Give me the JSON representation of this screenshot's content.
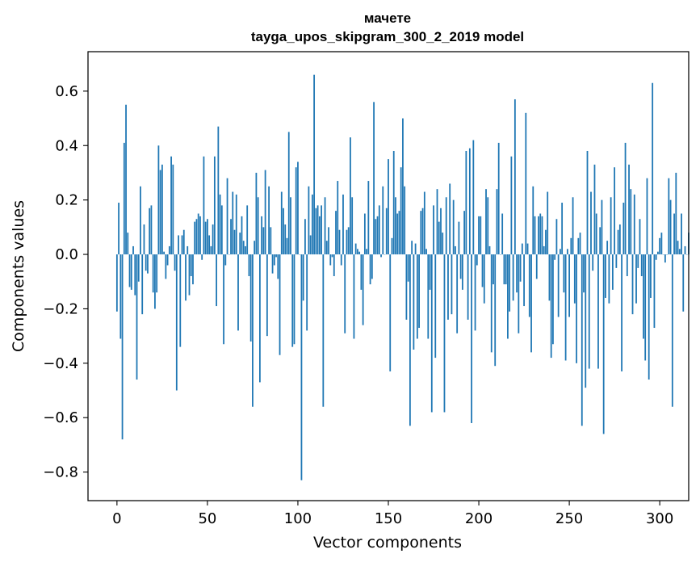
{
  "chart_data": {
    "type": "bar",
    "title": "мачете",
    "subtitle": "tayga_upos_skipgram_300_2_2019 model",
    "xlabel": "Vector components",
    "ylabel": "Components values",
    "xlim": [
      -16,
      316
    ],
    "ylim": [
      -0.905,
      0.745
    ],
    "x_ticks": [
      0,
      50,
      100,
      150,
      200,
      250,
      300
    ],
    "x_tick_labels": [
      "0",
      "50",
      "100",
      "150",
      "200",
      "250",
      "300"
    ],
    "y_ticks": [
      -0.8,
      -0.6,
      -0.4,
      -0.2,
      0.0,
      0.2,
      0.4,
      0.6
    ],
    "y_tick_labels": [
      "−0.8",
      "−0.6",
      "−0.4",
      "−0.2",
      "0.0",
      "0.2",
      "0.4",
      "0.6"
    ],
    "bar_color": "#1f77b4",
    "values": [
      -0.21,
      0.19,
      -0.31,
      -0.68,
      0.41,
      0.55,
      0.08,
      -0.12,
      -0.13,
      0.03,
      -0.15,
      -0.46,
      -0.1,
      0.25,
      -0.22,
      0.11,
      -0.06,
      -0.07,
      0.17,
      0.18,
      -0.14,
      -0.2,
      -0.14,
      0.4,
      0.31,
      0.33,
      0.01,
      -0.09,
      -0.04,
      0.03,
      0.36,
      0.33,
      -0.06,
      -0.5,
      0.07,
      -0.34,
      0.07,
      0.09,
      -0.17,
      0.03,
      -0.15,
      -0.08,
      -0.11,
      0.12,
      0.13,
      0.15,
      0.14,
      -0.02,
      0.36,
      0.12,
      0.13,
      0.07,
      0.03,
      0.11,
      0.36,
      -0.19,
      0.47,
      0.22,
      0.18,
      -0.33,
      -0.04,
      0.28,
      0.0,
      0.13,
      0.23,
      0.09,
      0.22,
      -0.28,
      0.08,
      0.14,
      0.05,
      0.03,
      0.18,
      -0.08,
      -0.32,
      -0.56,
      0.05,
      0.3,
      0.21,
      -0.47,
      0.14,
      0.1,
      0.31,
      -0.3,
      0.25,
      0.1,
      -0.07,
      -0.04,
      -0.01,
      -0.09,
      -0.37,
      0.23,
      0.17,
      0.11,
      0.06,
      0.45,
      0.21,
      -0.34,
      -0.33,
      0.32,
      0.34,
      0.0,
      -0.83,
      -0.17,
      0.13,
      -0.28,
      0.25,
      0.07,
      0.22,
      0.66,
      0.17,
      0.18,
      0.14,
      0.18,
      -0.56,
      0.21,
      0.05,
      0.1,
      -0.04,
      -0.01,
      -0.08,
      0.16,
      0.27,
      0.09,
      -0.04,
      0.22,
      -0.29,
      0.09,
      0.1,
      0.43,
      0.21,
      -0.31,
      0.04,
      0.02,
      0.01,
      -0.13,
      -0.26,
      0.15,
      0.02,
      0.27,
      -0.11,
      -0.09,
      0.56,
      0.13,
      0.14,
      0.18,
      -0.01,
      0.25,
      0.0,
      0.17,
      0.35,
      -0.43,
      0.06,
      0.38,
      0.21,
      0.15,
      0.16,
      0.32,
      0.5,
      0.25,
      -0.24,
      -0.1,
      -0.63,
      0.05,
      -0.35,
      0.04,
      -0.31,
      -0.27,
      0.16,
      0.17,
      0.23,
      0.02,
      -0.31,
      -0.13,
      -0.58,
      0.18,
      -0.38,
      0.24,
      0.12,
      0.17,
      0.08,
      -0.58,
      0.21,
      -0.24,
      0.26,
      -0.22,
      0.2,
      0.03,
      -0.29,
      0.12,
      -0.09,
      -0.13,
      0.16,
      0.38,
      -0.24,
      0.39,
      -0.62,
      0.42,
      -0.28,
      -0.04,
      0.14,
      0.14,
      -0.12,
      -0.18,
      0.24,
      0.21,
      0.03,
      -0.36,
      -0.11,
      -0.41,
      0.24,
      0.41,
      0.0,
      0.15,
      -0.11,
      -0.11,
      -0.31,
      -0.21,
      0.36,
      -0.17,
      0.57,
      -0.14,
      -0.29,
      -0.1,
      0.04,
      -0.19,
      0.52,
      0.04,
      -0.23,
      -0.36,
      0.25,
      0.14,
      -0.09,
      0.14,
      0.15,
      0.14,
      0.03,
      0.09,
      0.23,
      -0.17,
      -0.38,
      -0.33,
      -0.02,
      0.13,
      -0.23,
      0.02,
      0.19,
      -0.14,
      -0.39,
      0.02,
      -0.23,
      0.06,
      0.21,
      -0.18,
      -0.4,
      0.06,
      0.08,
      -0.63,
      -0.14,
      -0.49,
      0.38,
      -0.42,
      0.23,
      -0.06,
      0.33,
      0.15,
      -0.42,
      0.1,
      0.2,
      -0.66,
      -0.16,
      0.05,
      -0.18,
      0.21,
      -0.13,
      0.32,
      -0.05,
      0.09,
      0.11,
      -0.43,
      0.19,
      0.41,
      -0.08,
      0.33,
      0.24,
      -0.22,
      0.22,
      -0.18,
      -0.05,
      0.13,
      -0.08,
      -0.31,
      -0.39,
      0.28,
      -0.46,
      -0.16,
      0.63,
      -0.27,
      -0.02,
      0.01,
      0.06,
      0.08,
      0.0,
      -0.03,
      0.0,
      0.28,
      0.2,
      -0.56,
      0.15,
      0.3,
      0.05,
      0.02,
      0.15,
      -0.21,
      0.03,
      0.0,
      0.08
    ]
  }
}
